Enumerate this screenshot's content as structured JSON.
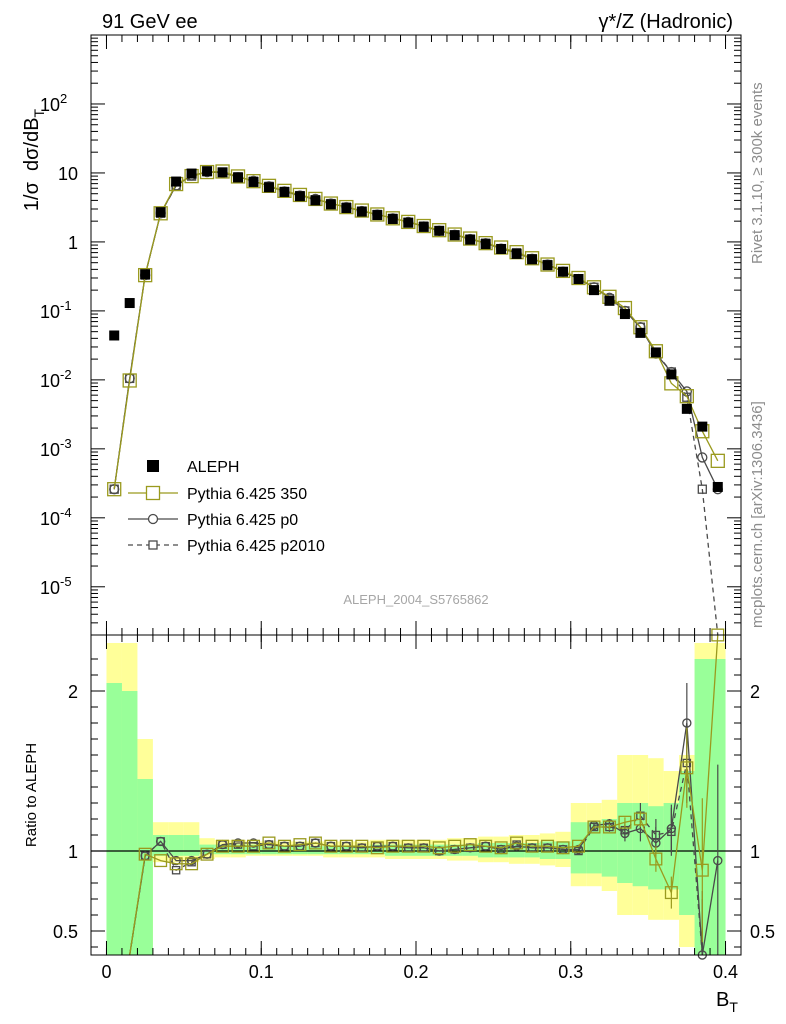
{
  "header": {
    "left": "91 GeV ee",
    "right": "γ*/Z (Hadronic)"
  },
  "side_text": {
    "rivet": "Rivet 3.1.10, ≥ 300k events",
    "mcplots": "mcplots.cern.ch [arXiv:1306.3436]"
  },
  "watermark": "ALEPH_2004_S5765862",
  "colors": {
    "data": "#000000",
    "pythia350": "#9a9a1e",
    "p0": "#4a4a4a",
    "p2010": "#4a4a4a",
    "band_yellow": "#ffff99",
    "band_green": "#99ff99"
  },
  "chart_data": {
    "type": "scatter",
    "xlabel": "B_T",
    "ylabel": "1/σ dσ/dB_T",
    "ratio_ylabel": "Ratio to ALEPH",
    "xlim": [
      -0.01,
      0.41
    ],
    "ylim": [
      2e-06,
      1000
    ],
    "ratio_ylim": [
      0.35,
      2.35
    ],
    "log_y": true,
    "x_ticks": [
      "0",
      "0.1",
      "0.2",
      "0.3",
      "0.4"
    ],
    "y_ticks": [
      "10^-5",
      "10^-4",
      "10^-3",
      "10^-2",
      "10^-1",
      "1",
      "10",
      "10^2"
    ],
    "ratio_ticks": [
      "0.5",
      "1",
      "2"
    ],
    "legend_position": "lower-left",
    "x": [
      0.005,
      0.015,
      0.025,
      0.035,
      0.045,
      0.055,
      0.065,
      0.075,
      0.085,
      0.095,
      0.105,
      0.115,
      0.125,
      0.135,
      0.145,
      0.155,
      0.165,
      0.175,
      0.185,
      0.195,
      0.205,
      0.215,
      0.225,
      0.235,
      0.245,
      0.255,
      0.265,
      0.275,
      0.285,
      0.295,
      0.305,
      0.315,
      0.325,
      0.335,
      0.345,
      0.355,
      0.365,
      0.375,
      0.385,
      0.395
    ],
    "series": [
      {
        "name": "ALEPH",
        "marker": "filled-square",
        "values": [
          0.044,
          0.13,
          0.34,
          2.7,
          7.5,
          9.8,
          10.6,
          10.2,
          8.6,
          7.4,
          6.2,
          5.3,
          4.6,
          4.0,
          3.5,
          3.1,
          2.75,
          2.45,
          2.15,
          1.9,
          1.65,
          1.45,
          1.25,
          1.08,
          0.93,
          0.79,
          0.67,
          0.56,
          0.46,
          0.37,
          0.29,
          0.2,
          0.14,
          0.09,
          0.048,
          0.025,
          0.012,
          0.0038,
          0.0021,
          0.00028
        ],
        "band_yellow": [
          [
            0.2,
            2.3
          ],
          [
            0.2,
            2.3
          ],
          [
            0.3,
            1.7
          ],
          [
            0.93,
            1.18
          ],
          [
            0.93,
            1.18
          ],
          [
            0.93,
            1.18
          ],
          [
            0.95,
            1.08
          ],
          [
            0.96,
            1.07
          ],
          [
            0.96,
            1.07
          ],
          [
            0.97,
            1.06
          ],
          [
            0.97,
            1.06
          ],
          [
            0.97,
            1.06
          ],
          [
            0.97,
            1.06
          ],
          [
            0.97,
            1.06
          ],
          [
            0.96,
            1.06
          ],
          [
            0.96,
            1.06
          ],
          [
            0.96,
            1.06
          ],
          [
            0.96,
            1.07
          ],
          [
            0.95,
            1.07
          ],
          [
            0.95,
            1.07
          ],
          [
            0.95,
            1.07
          ],
          [
            0.95,
            1.07
          ],
          [
            0.94,
            1.08
          ],
          [
            0.94,
            1.08
          ],
          [
            0.93,
            1.09
          ],
          [
            0.93,
            1.09
          ],
          [
            0.92,
            1.1
          ],
          [
            0.92,
            1.1
          ],
          [
            0.91,
            1.11
          ],
          [
            0.9,
            1.12
          ],
          [
            0.78,
            1.3
          ],
          [
            0.78,
            1.3
          ],
          [
            0.75,
            1.32
          ],
          [
            0.6,
            1.6
          ],
          [
            0.6,
            1.6
          ],
          [
            0.57,
            1.58
          ],
          [
            0.57,
            1.5
          ],
          [
            0.4,
            1.6
          ],
          [
            0.2,
            2.3
          ],
          [
            0.2,
            2.3
          ]
        ],
        "band_green": [
          [
            0.2,
            2.05
          ],
          [
            0.2,
            2.0
          ],
          [
            0.35,
            1.45
          ],
          [
            0.97,
            1.1
          ],
          [
            0.97,
            1.1
          ],
          [
            0.97,
            1.1
          ],
          [
            0.98,
            1.04
          ],
          [
            0.98,
            1.04
          ],
          [
            0.98,
            1.04
          ],
          [
            0.98,
            1.04
          ],
          [
            0.98,
            1.03
          ],
          [
            0.98,
            1.03
          ],
          [
            0.98,
            1.03
          ],
          [
            0.98,
            1.03
          ],
          [
            0.98,
            1.03
          ],
          [
            0.98,
            1.03
          ],
          [
            0.98,
            1.03
          ],
          [
            0.98,
            1.04
          ],
          [
            0.97,
            1.04
          ],
          [
            0.97,
            1.04
          ],
          [
            0.97,
            1.04
          ],
          [
            0.97,
            1.04
          ],
          [
            0.97,
            1.04
          ],
          [
            0.97,
            1.04
          ],
          [
            0.96,
            1.05
          ],
          [
            0.96,
            1.05
          ],
          [
            0.96,
            1.05
          ],
          [
            0.96,
            1.05
          ],
          [
            0.95,
            1.06
          ],
          [
            0.95,
            1.06
          ],
          [
            0.86,
            1.18
          ],
          [
            0.86,
            1.18
          ],
          [
            0.84,
            1.2
          ],
          [
            0.8,
            1.3
          ],
          [
            0.78,
            1.3
          ],
          [
            0.76,
            1.28
          ],
          [
            0.76,
            1.3
          ],
          [
            0.6,
            1.5
          ],
          [
            0.2,
            2.2
          ],
          [
            0.2,
            2.2
          ]
        ]
      },
      {
        "name": "Pythia 6.425 350",
        "marker": "open-square-line",
        "values": [
          0.00026,
          0.0098,
          0.33,
          2.6,
          6.9,
          9.0,
          10.3,
          10.5,
          8.9,
          7.6,
          6.5,
          5.5,
          4.8,
          4.2,
          3.6,
          3.2,
          2.85,
          2.5,
          2.2,
          1.95,
          1.7,
          1.48,
          1.28,
          1.12,
          0.96,
          0.83,
          0.71,
          0.58,
          0.47,
          0.38,
          0.3,
          0.22,
          0.16,
          0.11,
          0.058,
          0.026,
          0.0089,
          0.0058,
          0.0018,
          0.00067
        ],
        "ratio": [
          null,
          0.12,
          0.98,
          0.94,
          0.92,
          0.92,
          0.98,
          1.03,
          1.03,
          1.03,
          1.05,
          1.03,
          1.04,
          1.05,
          1.03,
          1.03,
          1.03,
          1.02,
          1.03,
          1.03,
          1.03,
          1.02,
          1.03,
          1.04,
          1.03,
          1.02,
          1.05,
          1.03,
          1.03,
          1.02,
          1.03,
          1.15,
          1.15,
          1.18,
          1.2,
          0.95,
          0.74,
          1.52,
          0.88,
          2.35
        ],
        "ratio_err": [
          0,
          0,
          0.01,
          0.01,
          0.01,
          0.01,
          0.01,
          0.01,
          0.01,
          0.01,
          0.01,
          0.01,
          0.01,
          0.01,
          0.01,
          0.01,
          0.01,
          0.01,
          0.01,
          0.01,
          0.01,
          0.01,
          0.01,
          0.01,
          0.01,
          0.01,
          0.01,
          0.01,
          0.01,
          0.01,
          0.01,
          0.01,
          0.02,
          0.03,
          0.05,
          0.08,
          0.1,
          0.25,
          0.45,
          0.0
        ]
      },
      {
        "name": "Pythia 6.425 p0",
        "marker": "open-circle-line",
        "values": [
          0.00026,
          0.0105,
          0.33,
          2.6,
          6.6,
          9.2,
          10.3,
          10.1,
          8.7,
          7.7,
          6.4,
          5.4,
          4.7,
          4.2,
          3.6,
          3.2,
          2.8,
          2.5,
          2.2,
          1.95,
          1.68,
          1.45,
          1.27,
          1.1,
          0.96,
          0.8,
          0.69,
          0.57,
          0.47,
          0.37,
          0.29,
          0.22,
          0.155,
          0.1,
          0.058,
          0.024,
          0.013,
          0.0068,
          0.00075,
          0.00026
        ],
        "ratio": [
          null,
          0.12,
          0.97,
          1.06,
          0.94,
          0.94,
          0.98,
          1.04,
          1.05,
          1.05,
          1.04,
          1.03,
          1.03,
          1.05,
          1.03,
          1.03,
          1.02,
          1.03,
          1.03,
          1.02,
          1.02,
          1.0,
          1.01,
          1.02,
          1.03,
          1.01,
          1.03,
          1.02,
          1.02,
          1.01,
          1.01,
          1.16,
          1.17,
          1.11,
          1.14,
          1.05,
          1.14,
          1.8,
          0.35,
          0.94
        ],
        "ratio_err": [
          0,
          0,
          0.01,
          0.01,
          0.01,
          0.01,
          0.01,
          0.01,
          0.01,
          0.01,
          0.01,
          0.01,
          0.01,
          0.01,
          0.01,
          0.01,
          0.01,
          0.01,
          0.01,
          0.01,
          0.01,
          0.01,
          0.01,
          0.01,
          0.01,
          0.01,
          0.01,
          0.01,
          0.01,
          0.01,
          0.01,
          0.02,
          0.03,
          0.05,
          0.08,
          0.1,
          0.15,
          0.25,
          0.4,
          0.6
        ]
      },
      {
        "name": "Pythia 6.425 p2010",
        "marker": "open-square-dashed",
        "values": [
          0.00026,
          0.0105,
          0.33,
          2.6,
          6.5,
          9.0,
          10.4,
          10.3,
          8.8,
          7.6,
          6.4,
          5.4,
          4.7,
          4.1,
          3.6,
          3.2,
          2.8,
          2.5,
          2.2,
          1.93,
          1.7,
          1.45,
          1.27,
          1.1,
          0.96,
          0.8,
          0.7,
          0.57,
          0.47,
          0.37,
          0.29,
          0.22,
          0.15,
          0.1,
          0.058,
          0.025,
          0.013,
          0.0056,
          0.00026,
          0.0
        ],
        "ratio": [
          null,
          0.12,
          0.97,
          1.06,
          0.88,
          0.93,
          0.98,
          1.04,
          1.04,
          1.03,
          1.04,
          1.03,
          1.03,
          1.05,
          1.03,
          1.03,
          1.02,
          1.03,
          1.03,
          1.02,
          1.02,
          1.0,
          1.01,
          1.02,
          1.03,
          1.01,
          1.04,
          1.02,
          1.02,
          1.01,
          1.0,
          1.15,
          1.15,
          1.13,
          1.22,
          1.1,
          1.12,
          1.55,
          0.3,
          null
        ],
        "ratio_err": [
          0,
          0,
          0.01,
          0.01,
          0.01,
          0.01,
          0.01,
          0.01,
          0.01,
          0.01,
          0.01,
          0.01,
          0.01,
          0.01,
          0.01,
          0.01,
          0.01,
          0.01,
          0.01,
          0.01,
          0.01,
          0.01,
          0.01,
          0.01,
          0.01,
          0.01,
          0.01,
          0.01,
          0.01,
          0.01,
          0.01,
          0.02,
          0.03,
          0.05,
          0.08,
          0.1,
          0.15,
          0.25,
          0.4,
          0.6
        ]
      }
    ]
  }
}
